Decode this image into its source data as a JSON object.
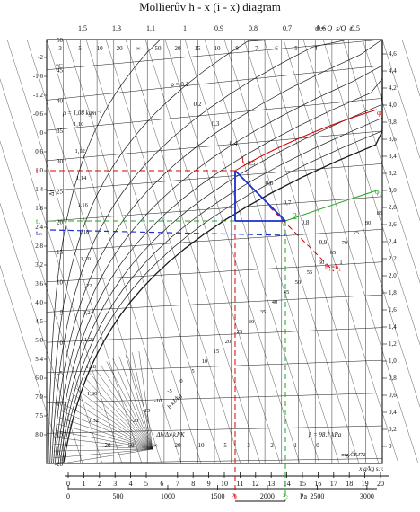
{
  "title": "Mollierův h - x (i - x) diagram",
  "chart_data": {
    "type": "line",
    "title": "Mollierův h - x (i - x) diagram",
    "x_axis": {
      "label": "x   g/kg s.v.",
      "ticks": [
        "0",
        "1",
        "2",
        "3",
        "4",
        "5",
        "6",
        "7",
        "8",
        "9",
        "10",
        "11",
        "12",
        "13",
        "14",
        "15",
        "16",
        "17",
        "18",
        "19",
        "20"
      ],
      "range": [
        0,
        20
      ]
    },
    "pressure_axis": {
      "label": "Pa",
      "ticks": [
        "0",
        "500",
        "1000",
        "1500",
        "2000",
        "2500",
        "3000"
      ],
      "range": [
        0,
        3100
      ]
    },
    "temperature_axis": {
      "label": "°C",
      "ticks": [
        "50",
        "45",
        "40",
        "35",
        "30",
        "25",
        "20",
        "15",
        "10",
        "5",
        "0",
        "-5",
        "-10",
        "-15",
        "-20"
      ],
      "range": [
        -20,
        50
      ]
    },
    "density_axis": {
      "label": "ρ = 1,08 kgm⁻³",
      "ticks": [
        "1,10",
        "1,12",
        "1,14",
        "1,16",
        "1,18",
        "1,20",
        "1,22",
        "1,24",
        "1,26",
        "1,28",
        "1,30",
        "1,32"
      ]
    },
    "left_scale_ticks": [
      "-2",
      "-1,6",
      "-1,2",
      "-0,6",
      "0",
      "0,6",
      "1,0",
      "1,4",
      "1,8",
      "2,4",
      "2,8",
      "3,2",
      "3,6",
      "4,0",
      "4,5",
      "5,0",
      "5,4",
      "6,0",
      "7,0",
      "7,5",
      "8,0"
    ],
    "right_scale_ticks": [
      "4,6",
      "4,4",
      "4,2",
      "4,0",
      "3,8",
      "3,6",
      "3,4",
      "3,2",
      "3,0",
      "2,8",
      "2,6",
      "2,4",
      "2,2",
      "2,0",
      "1,8",
      "1,6",
      "1,4",
      "1,2",
      "1,0",
      "0,8",
      "0,6",
      "0,4",
      "0,2",
      "0"
    ],
    "top_scale": {
      "label": "ϑ = Q_s/Q_c",
      "ticks": [
        "1,5",
        "1,3",
        "1,1",
        "1",
        "0,9",
        "0,8",
        "0,7",
        "0,6",
        "0,5"
      ]
    },
    "top_scale_2_ticks": [
      "-3",
      "-5",
      "-10",
      "-20",
      "∞",
      "50",
      "20",
      "15",
      "10",
      "8",
      "7",
      "6",
      "5",
      "4"
    ],
    "bottom_scale": {
      "label": "Δh/Δx  kJ/K",
      "ticks": [
        "20",
        "50",
        "-∞",
        "20",
        "10",
        "-5",
        "-3",
        "-2",
        "-1",
        "0"
      ]
    },
    "enthalpy_label": "h  kJ/kg",
    "enthalpy_ticks": [
      "-20",
      "-15",
      "-10",
      "-5",
      "0",
      "5",
      "10",
      "15",
      "20",
      "25",
      "30",
      "35",
      "40",
      "45",
      "50",
      "55",
      "60",
      "65",
      "70",
      "75",
      "80",
      "85"
    ],
    "rh_curves": [
      "φ = 0,1",
      "0,2",
      "0,3",
      "0,4",
      "0,5",
      "0,6",
      "0,7",
      "0,8",
      "0,9",
      "1"
    ],
    "pressure_note": "p̄ = 98,1 kPa",
    "watermark": "mg.ČEJ72",
    "annotations": {
      "point_1": "1",
      "point_2": "2",
      "t1": "t₁",
      "t2": "t₂",
      "tm": "tₘ",
      "phi1": "φ₁",
      "phi2": "φ₂",
      "h1h2": "h₁=h₂",
      "x1_label": "x₁",
      "x2_label": "x₂",
      "dt_label": "Δt"
    },
    "process_lines": {
      "state_1": {
        "x": 11.0,
        "t": 30
      },
      "state_2": {
        "x": 14.3,
        "t": 22
      }
    },
    "colors": {
      "grid": "#1a1a1a",
      "state_1": "#d40000",
      "state_2": "#1fa51f",
      "process": "#1a2fcf",
      "mix": "#1a2fcf"
    }
  }
}
